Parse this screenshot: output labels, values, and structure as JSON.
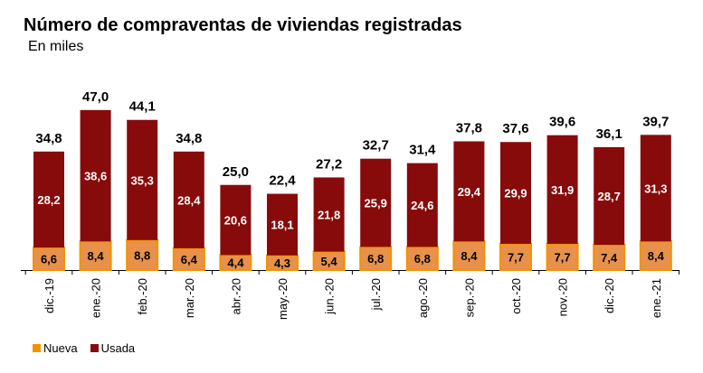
{
  "chart_data": {
    "type": "bar",
    "stacked": true,
    "title": "Número de compraventas de viviendas registradas",
    "subtitle": "En miles",
    "xlabel": "",
    "ylabel": "",
    "ylim": [
      0,
      50
    ],
    "grid": false,
    "legend_position": "bottom-left",
    "categories": [
      "dic.-19",
      "ene.-20",
      "feb.-20",
      "mar.-20",
      "abr.-20",
      "may.-20",
      "jun.-20",
      "jul.-20",
      "ago.-20",
      "sep.-20",
      "oct.-20",
      "nov.-20",
      "dic.-20",
      "ene.-21"
    ],
    "series": [
      {
        "name": "Nueva",
        "color": "#E8914A",
        "edge_color": "#F39200",
        "values": [
          6.6,
          8.4,
          8.8,
          6.4,
          4.4,
          4.3,
          5.4,
          6.8,
          6.8,
          8.4,
          7.7,
          7.7,
          7.4,
          8.4
        ],
        "labels": [
          "6,6",
          "8,4",
          "8,8",
          "6,4",
          "4,4",
          "4,3",
          "5,4",
          "6,8",
          "6,8",
          "8,4",
          "7,7",
          "7,7",
          "7,4",
          "8,4"
        ]
      },
      {
        "name": "Usada",
        "color": "#870B0B",
        "values": [
          28.2,
          38.6,
          35.3,
          28.4,
          20.6,
          18.1,
          21.8,
          25.9,
          24.6,
          29.4,
          29.9,
          31.9,
          28.7,
          31.3
        ],
        "labels": [
          "28,2",
          "38,6",
          "35,3",
          "28,4",
          "20,6",
          "18,1",
          "21,8",
          "25,9",
          "24,6",
          "29,4",
          "29,9",
          "31,9",
          "28,7",
          "31,3"
        ]
      }
    ],
    "totals": [
      34.8,
      47.0,
      44.1,
      34.8,
      25.0,
      22.4,
      27.2,
      32.7,
      31.4,
      37.8,
      37.6,
      39.6,
      36.1,
      39.7
    ],
    "total_labels": [
      "34,8",
      "47,0",
      "44,1",
      "34,8",
      "25,0",
      "22,4",
      "27,2",
      "32,7",
      "31,4",
      "37,8",
      "37,6",
      "39,6",
      "36,1",
      "39,7"
    ]
  }
}
